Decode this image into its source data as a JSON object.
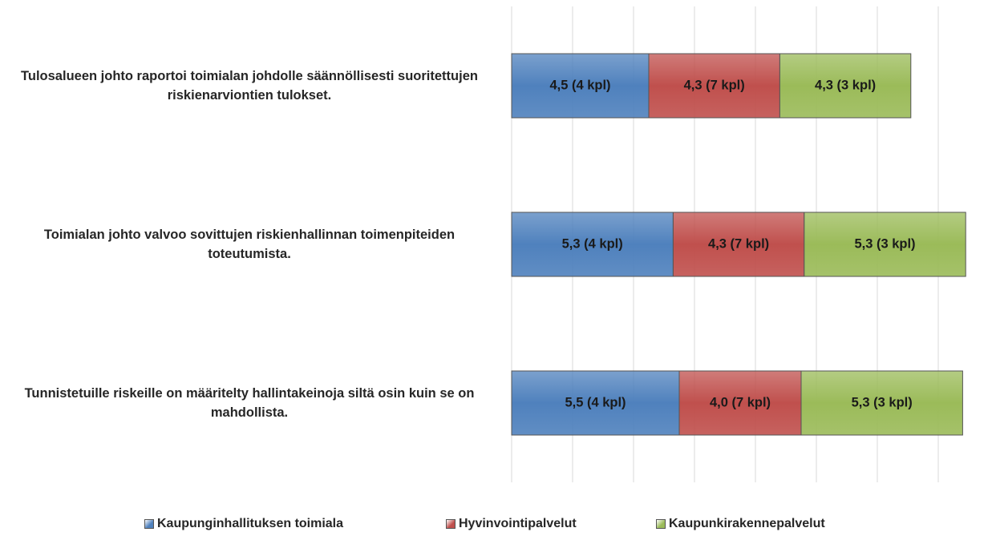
{
  "chart_data": {
    "type": "stacked-barh",
    "categories": [
      "Tulosalueen johto raportoi toimialan johdolle säännöllisesti suoritettujen riskienarviontien tulokset.",
      "Toimialan johto valvoo sovittujen riskienhallinnan toimenpiteiden toteutumista.",
      "Tunnistetuille riskeille on määritelty hallintakeinoja siltä osin kuin se on mahdollista."
    ],
    "series": [
      {
        "name": "Kaupunginhallituksen toimiala",
        "color": "#4f81bd",
        "values": [
          4.5,
          5.3,
          5.5
        ],
        "value_labels": [
          "4,5 (4 kpl)",
          "5,3 (4 kpl)",
          "5,5 (4 kpl)"
        ]
      },
      {
        "name": "Hyvinvointipalvelut",
        "color": "#c0504d",
        "values": [
          4.3,
          4.3,
          4.0
        ],
        "value_labels": [
          "4,3 (7 kpl)",
          "4,3 (7 kpl)",
          "4,0 (7 kpl)"
        ]
      },
      {
        "name": "Kaupunkirakennepalvelut",
        "color": "#9bbb59",
        "values": [
          4.3,
          5.3,
          5.3
        ],
        "value_labels": [
          "4,3 (3 kpl)",
          "5,3 (3 kpl)",
          "5,3 (3 kpl)"
        ]
      }
    ],
    "xlim": [
      0,
      15
    ],
    "xticks": [
      0,
      2,
      4,
      6,
      8,
      10,
      12,
      14
    ],
    "grid": true,
    "legend": "bottom"
  }
}
